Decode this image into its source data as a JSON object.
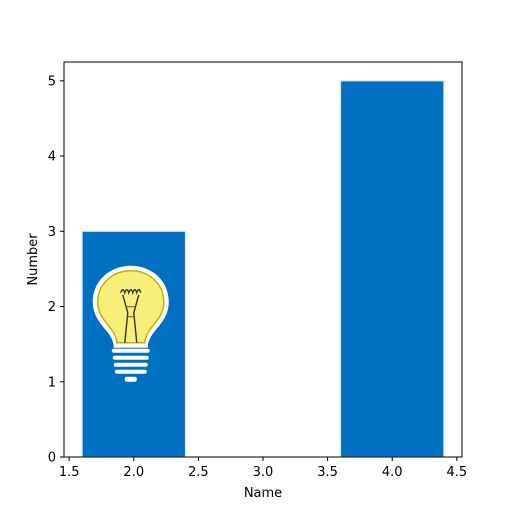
{
  "chart_data": {
    "type": "bar",
    "xlabel": "Name",
    "ylabel": "Number",
    "xlim": [
      1.46,
      4.54
    ],
    "ylim": [
      0,
      5.25
    ],
    "x_ticks": [
      1.5,
      2.0,
      2.5,
      3.0,
      3.5,
      4.0,
      4.5
    ],
    "x_tick_labels": [
      "1.5",
      "2.0",
      "2.5",
      "3.0",
      "3.5",
      "4.0",
      "4.5"
    ],
    "y_ticks": [
      0,
      1,
      2,
      3,
      4,
      5
    ],
    "y_tick_labels": [
      "0",
      "1",
      "2",
      "3",
      "4",
      "5"
    ],
    "bars": [
      {
        "x": 2,
        "width": 0.8,
        "value": 3
      },
      {
        "x": 4,
        "width": 0.8,
        "value": 5
      }
    ],
    "bar_color": "#0070c0",
    "grid": false,
    "legend": "none",
    "annotation_icon": "lightbulb-icon"
  }
}
